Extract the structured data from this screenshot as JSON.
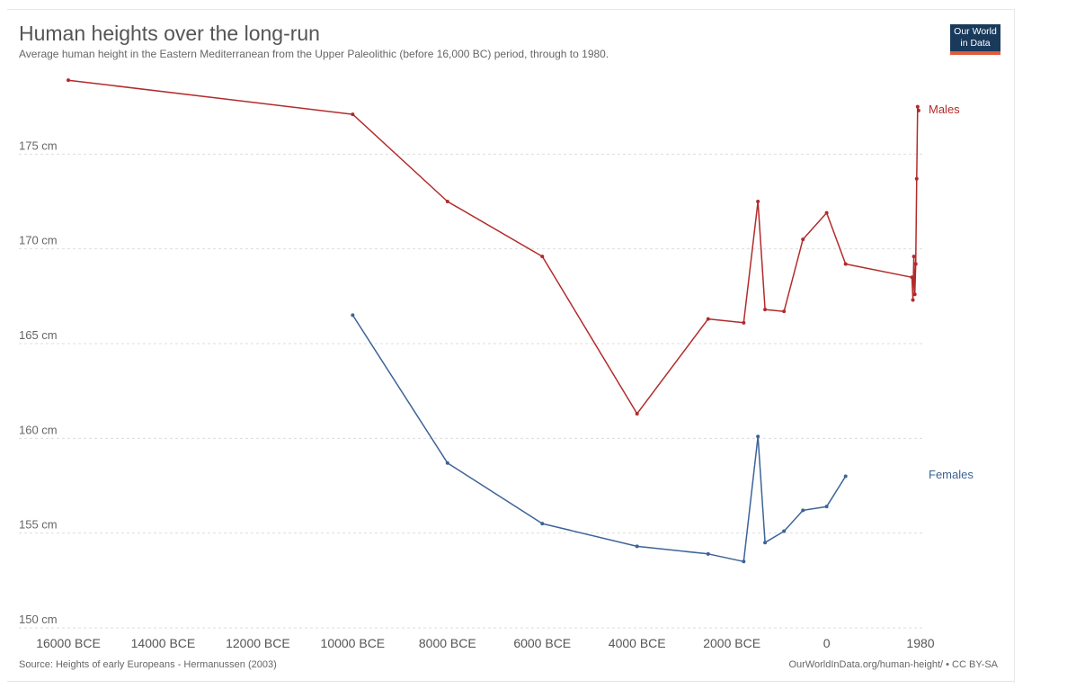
{
  "header": {
    "title": "Human heights over the long-run",
    "subtitle": "Average human height in the Eastern Mediterranean from the Upper Paleolithic (before 16,000 BC) period, through to 1980."
  },
  "logo": {
    "line1": "Our World",
    "line2": "in Data"
  },
  "footer": {
    "source": "Source: Heights of early Europeans - Hermanussen (2003)",
    "credit": "OurWorldInData.org/human-height/ • CC BY-SA"
  },
  "colors": {
    "males": "#b22b2b",
    "females": "#3d6396",
    "grid": "#dddddd",
    "logo_bg": "#1a3a5c",
    "logo_bar": "#e05a3a"
  },
  "chart_data": {
    "type": "line",
    "title": "Human heights over the long-run",
    "xlabel": "",
    "ylabel": "",
    "xlim": [
      -16000,
      1980
    ],
    "ylim": [
      150,
      180
    ],
    "x_ticks": [
      -16000,
      -14000,
      -12000,
      -10000,
      -8000,
      -6000,
      -4000,
      -2000,
      0,
      1980
    ],
    "x_tick_labels": [
      "16000 BCE",
      "14000 BCE",
      "12000 BCE",
      "10000 BCE",
      "8000 BCE",
      "6000 BCE",
      "4000 BCE",
      "2000 BCE",
      "0",
      "1980"
    ],
    "y_ticks": [
      150,
      155,
      160,
      165,
      170,
      175
    ],
    "y_tick_labels": [
      "150 cm",
      "155 cm",
      "160 cm",
      "165 cm",
      "170 cm",
      "175 cm"
    ],
    "grid": true,
    "series": [
      {
        "name": "Males",
        "color": "#b22b2b",
        "points": [
          [
            -16000,
            178.9
          ],
          [
            -10000,
            177.1
          ],
          [
            -8000,
            172.5
          ],
          [
            -6000,
            169.6
          ],
          [
            -4000,
            161.3
          ],
          [
            -2500,
            166.3
          ],
          [
            -1750,
            166.1
          ],
          [
            -1450,
            172.5
          ],
          [
            -1300,
            166.8
          ],
          [
            -900,
            166.7
          ],
          [
            -500,
            170.5
          ],
          [
            0,
            171.9
          ],
          [
            400,
            169.2
          ],
          [
            1800,
            168.5
          ],
          [
            1820,
            167.3
          ],
          [
            1840,
            169.6
          ],
          [
            1860,
            167.6
          ],
          [
            1880,
            169.2
          ],
          [
            1900,
            173.7
          ],
          [
            1920,
            177.5
          ],
          [
            1940,
            177.3
          ]
        ]
      },
      {
        "name": "Females",
        "color": "#3d6396",
        "points": [
          [
            -10000,
            166.5
          ],
          [
            -8000,
            158.7
          ],
          [
            -6000,
            155.5
          ],
          [
            -4000,
            154.3
          ],
          [
            -2500,
            153.9
          ],
          [
            -1750,
            153.5
          ],
          [
            -1450,
            160.1
          ],
          [
            -1300,
            154.5
          ],
          [
            -900,
            155.1
          ],
          [
            -500,
            156.2
          ],
          [
            0,
            156.4
          ],
          [
            400,
            158.0
          ]
        ]
      }
    ]
  }
}
